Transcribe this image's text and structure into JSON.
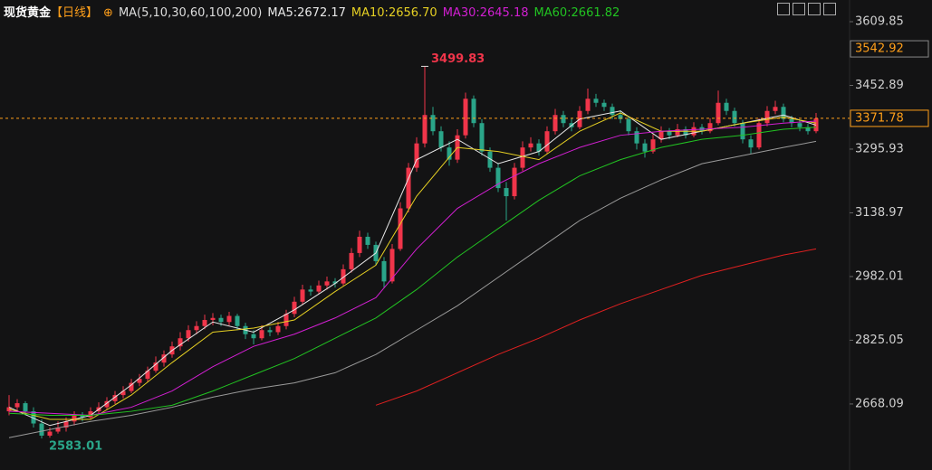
{
  "chart_data": {
    "type": "candlestick",
    "title": "现货黄金",
    "period": "【日线】",
    "indicator": "MA(5,10,30,60,100,200)",
    "up_color": "#f0354a",
    "down_color": "#2aa589",
    "ylim": [
      2505.4,
      3663.3
    ],
    "yticks": [
      2668.09,
      2825.05,
      2982.01,
      3138.97,
      3295.93,
      3452.89,
      3609.85
    ],
    "marker_price": 3542.92,
    "candles": [
      [
        2650,
        2690,
        2640,
        2660
      ],
      [
        2660,
        2680,
        2650,
        2670
      ],
      [
        2670,
        2675,
        2640,
        2650
      ],
      [
        2650,
        2660,
        2610,
        2620
      ],
      [
        2620,
        2630,
        2583.01,
        2590
      ],
      [
        2590,
        2610,
        2585,
        2600
      ],
      [
        2600,
        2625,
        2595,
        2610
      ],
      [
        2610,
        2635,
        2600,
        2625
      ],
      [
        2625,
        2650,
        2615,
        2640
      ],
      [
        2640,
        2648,
        2625,
        2635
      ],
      [
        2635,
        2660,
        2630,
        2650
      ],
      [
        2650,
        2672,
        2642,
        2660
      ],
      [
        2660,
        2685,
        2655,
        2675
      ],
      [
        2675,
        2700,
        2668,
        2690
      ],
      [
        2690,
        2712,
        2682,
        2700
      ],
      [
        2700,
        2730,
        2695,
        2720
      ],
      [
        2720,
        2742,
        2712,
        2730
      ],
      [
        2730,
        2760,
        2722,
        2750
      ],
      [
        2750,
        2785,
        2745,
        2770
      ],
      [
        2770,
        2800,
        2760,
        2790
      ],
      [
        2790,
        2822,
        2782,
        2810
      ],
      [
        2810,
        2845,
        2800,
        2830
      ],
      [
        2830,
        2862,
        2822,
        2850
      ],
      [
        2850,
        2872,
        2840,
        2860
      ],
      [
        2860,
        2888,
        2852,
        2875
      ],
      [
        2875,
        2892,
        2862,
        2880
      ],
      [
        2880,
        2888,
        2860,
        2870
      ],
      [
        2870,
        2895,
        2862,
        2885
      ],
      [
        2885,
        2890,
        2850,
        2860
      ],
      [
        2860,
        2868,
        2828,
        2840
      ],
      [
        2840,
        2850,
        2815,
        2830
      ],
      [
        2830,
        2862,
        2825,
        2850
      ],
      [
        2850,
        2858,
        2835,
        2845
      ],
      [
        2845,
        2870,
        2838,
        2860
      ],
      [
        2860,
        2900,
        2852,
        2890
      ],
      [
        2890,
        2932,
        2882,
        2920
      ],
      [
        2920,
        2962,
        2912,
        2950
      ],
      [
        2950,
        2960,
        2935,
        2945
      ],
      [
        2945,
        2972,
        2940,
        2960
      ],
      [
        2960,
        2982,
        2950,
        2970
      ],
      [
        2970,
        2978,
        2955,
        2965
      ],
      [
        2965,
        3012,
        2960,
        3000
      ],
      [
        3000,
        3052,
        2992,
        3040
      ],
      [
        3040,
        3095,
        3030,
        3080
      ],
      [
        3080,
        3090,
        3050,
        3060
      ],
      [
        3060,
        3068,
        3010,
        3020
      ],
      [
        3020,
        3030,
        2955,
        2970
      ],
      [
        2970,
        3062,
        2965,
        3050
      ],
      [
        3050,
        3165,
        3045,
        3150
      ],
      [
        3150,
        3262,
        3140,
        3250
      ],
      [
        3250,
        3325,
        3240,
        3310
      ],
      [
        3310,
        3499.83,
        3300,
        3380
      ],
      [
        3380,
        3400,
        3330,
        3340
      ],
      [
        3340,
        3352,
        3290,
        3300
      ],
      [
        3300,
        3315,
        3255,
        3270
      ],
      [
        3270,
        3345,
        3262,
        3330
      ],
      [
        3330,
        3435,
        3322,
        3420
      ],
      [
        3420,
        3428,
        3350,
        3360
      ],
      [
        3360,
        3370,
        3280,
        3290
      ],
      [
        3290,
        3300,
        3240,
        3250
      ],
      [
        3250,
        3262,
        3190,
        3200
      ],
      [
        3200,
        3215,
        3120,
        3180
      ],
      [
        3180,
        3262,
        3172,
        3250
      ],
      [
        3250,
        3315,
        3242,
        3300
      ],
      [
        3300,
        3325,
        3290,
        3310
      ],
      [
        3310,
        3320,
        3280,
        3290
      ],
      [
        3290,
        3352,
        3285,
        3340
      ],
      [
        3340,
        3395,
        3332,
        3380
      ],
      [
        3380,
        3390,
        3350,
        3360
      ],
      [
        3360,
        3372,
        3340,
        3350
      ],
      [
        3350,
        3402,
        3345,
        3390
      ],
      [
        3390,
        3445,
        3382,
        3420
      ],
      [
        3420,
        3432,
        3400,
        3410
      ],
      [
        3410,
        3418,
        3390,
        3400
      ],
      [
        3400,
        3408,
        3370,
        3380
      ],
      [
        3380,
        3392,
        3360,
        3370
      ],
      [
        3370,
        3378,
        3330,
        3340
      ],
      [
        3340,
        3350,
        3295,
        3310
      ],
      [
        3310,
        3320,
        3275,
        3290
      ],
      [
        3290,
        3332,
        3285,
        3320
      ],
      [
        3320,
        3352,
        3312,
        3340
      ],
      [
        3340,
        3348,
        3320,
        3330
      ],
      [
        3330,
        3358,
        3325,
        3345
      ],
      [
        3345,
        3352,
        3322,
        3330
      ],
      [
        3330,
        3362,
        3325,
        3350
      ],
      [
        3350,
        3358,
        3332,
        3340
      ],
      [
        3340,
        3372,
        3335,
        3360
      ],
      [
        3360,
        3440,
        3355,
        3410
      ],
      [
        3410,
        3420,
        3380,
        3390
      ],
      [
        3390,
        3398,
        3352,
        3360
      ],
      [
        3360,
        3368,
        3310,
        3320
      ],
      [
        3320,
        3330,
        3285,
        3300
      ],
      [
        3300,
        3372,
        3295,
        3360
      ],
      [
        3360,
        3402,
        3352,
        3390
      ],
      [
        3390,
        3415,
        3382,
        3400
      ],
      [
        3400,
        3408,
        3362,
        3370
      ],
      [
        3370,
        3378,
        3350,
        3360
      ],
      [
        3360,
        3368,
        3340,
        3350
      ],
      [
        3350,
        3358,
        3332,
        3340
      ],
      [
        3340,
        3385,
        3335,
        3371.78
      ]
    ],
    "ma_index": [
      0,
      5,
      10,
      15,
      20,
      25,
      30,
      35,
      40,
      45,
      50,
      55,
      60,
      65,
      70,
      75,
      80,
      85,
      90,
      95,
      99
    ],
    "series": [
      {
        "name": "MA5:2672.17",
        "color": "#e8e8e8",
        "values": [
          2660,
          2615,
          2640,
          2715,
          2800,
          2870,
          2845,
          2900,
          2965,
          3040,
          3270,
          3320,
          3260,
          3290,
          3370,
          3390,
          3320,
          3340,
          3360,
          3380,
          3355
        ]
      },
      {
        "name": "MA10:2656.70",
        "color": "#e6d023",
        "values": [
          2655,
          2630,
          2630,
          2690,
          2770,
          2845,
          2855,
          2875,
          2945,
          3010,
          3180,
          3300,
          3290,
          3270,
          3340,
          3385,
          3340,
          3340,
          3360,
          3375,
          3360
        ]
      },
      {
        "name": "MA30:2645.18",
        "color": "#d21fd2",
        "values": [
          2650,
          2645,
          2640,
          2660,
          2700,
          2760,
          2810,
          2840,
          2880,
          2930,
          3050,
          3150,
          3210,
          3260,
          3300,
          3330,
          3340,
          3345,
          3350,
          3360,
          3365
        ]
      },
      {
        "name": "MA60:2661.82",
        "color": "#22c322",
        "values": [
          2645,
          2640,
          2640,
          2650,
          2665,
          2700,
          2740,
          2780,
          2830,
          2880,
          2950,
          3030,
          3100,
          3170,
          3230,
          3270,
          3300,
          3320,
          3330,
          3345,
          3350
        ]
      },
      {
        "color": "#9a9a9a",
        "values": [
          2585,
          2605,
          2625,
          2640,
          2660,
          2685,
          2705,
          2720,
          2745,
          2790,
          2850,
          2910,
          2980,
          3050,
          3120,
          3175,
          3220,
          3260,
          3280,
          3300,
          3315
        ]
      },
      {
        "color": "#e02020",
        "values": [
          null,
          null,
          null,
          null,
          null,
          null,
          null,
          null,
          null,
          2665,
          2700,
          2745,
          2790,
          2830,
          2875,
          2915,
          2950,
          2985,
          3010,
          3035,
          3050
        ]
      }
    ]
  }
}
